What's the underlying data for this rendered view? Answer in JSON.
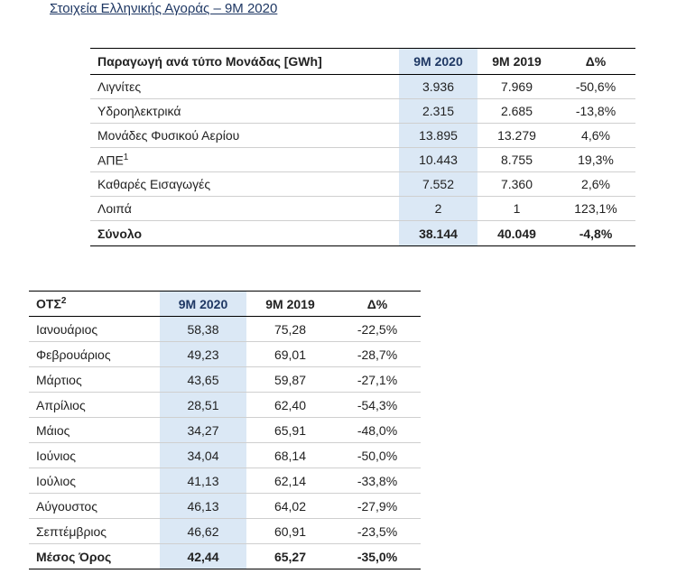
{
  "title": "Στοιχεία Ελληνικής Αγοράς – 9M 2020",
  "table1": {
    "header": {
      "label": "Παραγωγή ανά τύπο Μονάδας [GWh]",
      "c1": "9M 2020",
      "c2": "9M 2019",
      "c3": "Δ%"
    },
    "rows": [
      {
        "label": "Λιγνίτες",
        "sup": "",
        "v1": "3.936",
        "v2": "7.969",
        "v3": "-50,6%"
      },
      {
        "label": "Υδροηλεκτρικά",
        "sup": "",
        "v1": "2.315",
        "v2": "2.685",
        "v3": "-13,8%"
      },
      {
        "label": "Μονάδες Φυσικού Αερίου",
        "sup": "",
        "v1": "13.895",
        "v2": "13.279",
        "v3": "4,6%"
      },
      {
        "label": "ΑΠΕ",
        "sup": "1",
        "v1": "10.443",
        "v2": "8.755",
        "v3": "19,3%"
      },
      {
        "label": "Καθαρές Εισαγωγές",
        "sup": "",
        "v1": "7.552",
        "v2": "7.360",
        "v3": "2,6%"
      },
      {
        "label": "Λοιπά",
        "sup": "",
        "v1": "2",
        "v2": "1",
        "v3": "123,1%"
      }
    ],
    "total": {
      "label": "Σύνολο",
      "v1": "38.144",
      "v2": "40.049",
      "v3": "-4,8%"
    }
  },
  "table2": {
    "header": {
      "label": "ΟΤΣ",
      "sup": "2",
      "c1": "9M 2020",
      "c2": "9M 2019",
      "c3": "Δ%"
    },
    "rows": [
      {
        "label": "Ιανουάριος",
        "v1": "58,38",
        "v2": "75,28",
        "v3": "-22,5%"
      },
      {
        "label": "Φεβρουάριος",
        "v1": "49,23",
        "v2": "69,01",
        "v3": "-28,7%"
      },
      {
        "label": "Μάρτιος",
        "v1": "43,65",
        "v2": "59,87",
        "v3": "-27,1%"
      },
      {
        "label": "Απρίλιος",
        "v1": "28,51",
        "v2": "62,40",
        "v3": "-54,3%"
      },
      {
        "label": "Μάιος",
        "v1": "34,27",
        "v2": "65,91",
        "v3": "-48,0%"
      },
      {
        "label": "Ιούνιος",
        "v1": "34,04",
        "v2": "68,14",
        "v3": "-50,0%"
      },
      {
        "label": "Ιούλιος",
        "v1": "41,13",
        "v2": "62,14",
        "v3": "-33,8%"
      },
      {
        "label": "Αύγουστος",
        "v1": "46,13",
        "v2": "64,02",
        "v3": "-27,9%"
      },
      {
        "label": "Σεπτέμβριος",
        "v1": "46,62",
        "v2": "60,91",
        "v3": "-23,5%"
      }
    ],
    "total": {
      "label": "Μέσος Όρος",
      "v1": "42,44",
      "v2": "65,27",
      "v3": "-35,0%"
    }
  }
}
